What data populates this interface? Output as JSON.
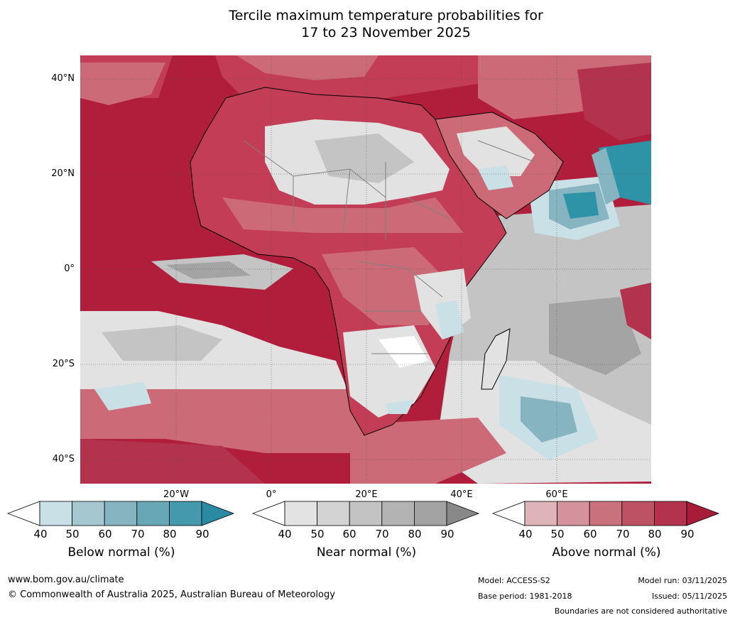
{
  "title": {
    "line1": "Tercile maximum temperature probabilities for",
    "line2": "17 to 23 November 2025"
  },
  "map": {
    "latitude_labels": [
      "40°N",
      "20°N",
      "0°",
      "20°S",
      "40°S"
    ],
    "longitude_labels": [
      "20°W",
      "0°",
      "20°E",
      "40°E",
      "60°E"
    ],
    "colors": {
      "ocean_warm": "#b01e3c",
      "land_above_high": "#c23d55",
      "land_above_mid": "#cd6a78",
      "land_above_low": "#dfb2ba",
      "near_normal_light": "#e2e2e2",
      "near_normal_mid": "#c4c4c4",
      "near_normal_dark": "#a4a4a4",
      "below_light": "#c9e0e6",
      "below_mid": "#86b4c1",
      "below_dark": "#2f93a8",
      "coastline": "#000000",
      "border": "#808080"
    }
  },
  "colorbars": [
    {
      "id": "below",
      "title": "Below normal (%)",
      "ticks": [
        "40",
        "50",
        "60",
        "70",
        "80",
        "90"
      ],
      "colors": [
        "#c9e0e6",
        "#a5c7cf",
        "#86b4c1",
        "#67a7b6",
        "#4499ac",
        "#2a8aa2"
      ]
    },
    {
      "id": "near",
      "title": "Near normal (%)",
      "ticks": [
        "40",
        "50",
        "60",
        "70",
        "80",
        "90"
      ],
      "colors": [
        "#e3e3e3",
        "#d3d3d3",
        "#c3c3c3",
        "#b3b3b3",
        "#a3a3a3",
        "#888888"
      ]
    },
    {
      "id": "above",
      "title": "Above normal (%)",
      "ticks": [
        "40",
        "50",
        "60",
        "70",
        "80",
        "90"
      ],
      "colors": [
        "#dfb3ba",
        "#d4929c",
        "#c9727d",
        "#bd5264",
        "#b3324d",
        "#a81c3a"
      ]
    }
  ],
  "footer": {
    "website": "www.bom.gov.au/climate",
    "copyright": "© Commonwealth of Australia 2025, Australian Bureau of Meteorology",
    "model": "Model: ACCESS-S2",
    "base_period": "Base period: 1981-2018",
    "model_run": "Model run: 03/11/2025",
    "issued": "Issued: 05/11/2025",
    "disclaimer": "Boundaries are not considered authoritative"
  }
}
